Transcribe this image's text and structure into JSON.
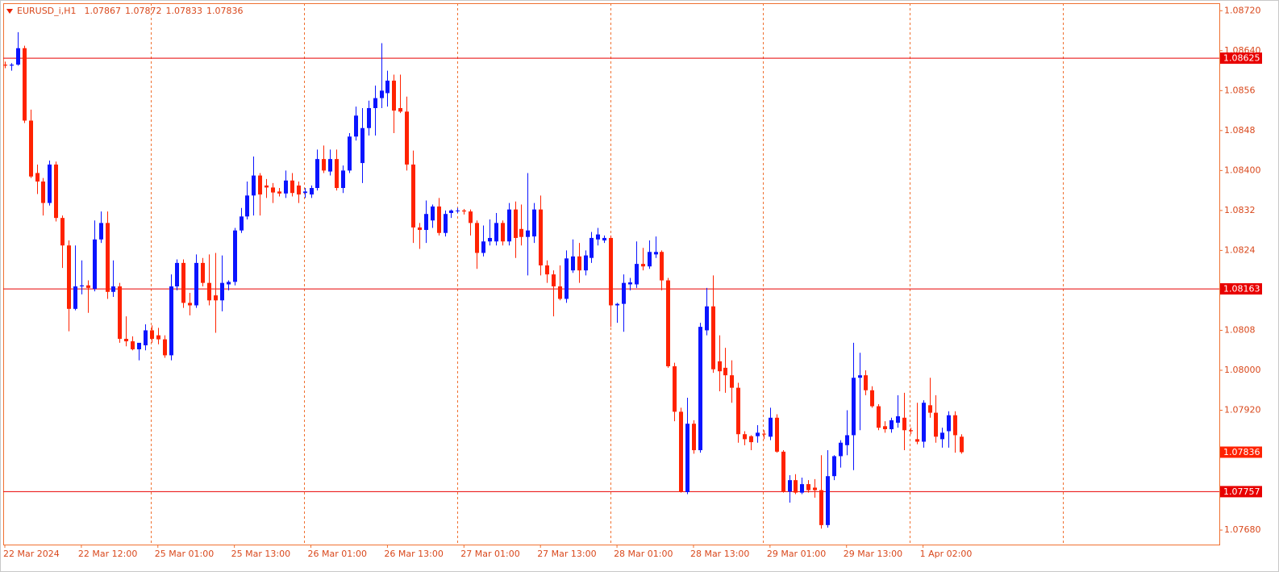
{
  "chart_data": {
    "type": "candlestick",
    "symbol": "EURUSD_i,H1",
    "categories": [
      "22 Mar 2024",
      null,
      null,
      null,
      null,
      null,
      null,
      null,
      null,
      null,
      null,
      null,
      "22 Mar 12:00",
      null,
      null,
      null,
      null,
      null,
      null,
      null,
      null,
      null,
      null,
      null,
      "25 Mar 01:00",
      null,
      null,
      null,
      null,
      null,
      null,
      null,
      null,
      null,
      null,
      null,
      "25 Mar 13:00",
      null,
      null,
      null,
      null,
      null,
      null,
      null,
      null,
      null,
      null,
      null,
      "26 Mar 01:00",
      null,
      null,
      null,
      null,
      null,
      null,
      null,
      null,
      null,
      null,
      null,
      "26 Mar 13:00",
      null,
      null,
      null,
      null,
      null,
      null,
      null,
      null,
      null,
      null,
      null,
      "27 Mar 01:00",
      null,
      null,
      null,
      null,
      null,
      null,
      null,
      null,
      null,
      null,
      null,
      "27 Mar 13:00",
      null,
      null,
      null,
      null,
      null,
      null,
      null,
      null,
      null,
      null,
      null,
      "28 Mar 01:00",
      null,
      null,
      null,
      null,
      null,
      null,
      null,
      null,
      null,
      null,
      null,
      "28 Mar 13:00",
      null,
      null,
      null,
      null,
      null,
      null,
      null,
      null,
      null,
      null,
      null,
      "29 Mar 01:00",
      null,
      null,
      null,
      null,
      null,
      null,
      null,
      null,
      null,
      null,
      null,
      "29 Mar 13:00",
      null,
      null,
      null,
      null,
      null,
      null,
      null,
      null,
      null,
      null,
      null,
      "1 Apr 02:00",
      null,
      null,
      null,
      null,
      null,
      null
    ],
    "open": [
      1.08612,
      1.0861,
      1.08612,
      1.08645,
      1.085,
      1.08395,
      1.08378,
      1.08335,
      1.08412,
      1.08305,
      1.0825,
      1.08123,
      1.08168,
      1.0817,
      1.08163,
      1.08262,
      1.08295,
      1.08157,
      1.08168,
      1.08063,
      1.08058,
      1.08042,
      1.0805,
      1.0808,
      1.0807,
      1.08062,
      1.0803,
      1.08168,
      1.08215,
      1.08135,
      1.0813,
      1.08215,
      1.08175,
      1.0815,
      1.0814,
      1.08172,
      1.08177,
      1.0828,
      1.08308,
      1.0835,
      1.0839,
      1.0837,
      1.08366,
      1.08358,
      1.08354,
      1.0838,
      1.0837,
      1.08355,
      1.08352,
      1.08365,
      1.08423,
      1.08398,
      1.08423,
      1.08365,
      1.084,
      1.08468,
      1.08415,
      1.08485,
      1.08525,
      1.08545,
      1.08555,
      1.0858,
      1.08525,
      1.08518,
      1.08412,
      1.08286,
      1.08281,
      1.083,
      1.08328,
      1.08275,
      1.08315,
      1.0832,
      1.0832,
      1.08318,
      1.08295,
      1.08235,
      1.08258,
      1.08258,
      1.08295,
      1.08258,
      1.08322,
      1.08283,
      1.08267,
      1.08268,
      1.08322,
      1.0821,
      1.08192,
      1.08168,
      1.08143,
      1.082,
      1.08228,
      1.082,
      1.08225,
      1.08262,
      1.0826,
      1.08265,
      1.0813,
      1.08133,
      1.08172,
      1.08172,
      1.08213,
      1.08208,
      1.08232,
      1.08237,
      1.0818,
      1.08008,
      1.07917,
      1.07756,
      1.07893,
      1.0784,
      1.0808,
      1.08128,
      1.08018,
      1.08005,
      1.0799,
      1.07965,
      1.07872,
      1.07868,
      1.07868,
      1.07873,
      1.07867,
      1.07905,
      1.07837,
      1.07757,
      1.0778,
      1.07755,
      1.07772,
      1.07765,
      1.0776,
      1.0769,
      1.07788,
      1.07828,
      1.0785,
      1.0787,
      1.07985,
      1.0799,
      1.0796,
      1.07928,
      1.07888,
      1.07882,
      1.07895,
      1.07905,
      1.0788,
      1.07862,
      1.07857,
      1.0793,
      1.07915,
      1.07862,
      1.07878,
      1.0791,
      1.07867
    ],
    "high": [
      1.08618,
      1.08615,
      1.08677,
      1.0865,
      1.08522,
      1.08412,
      1.08385,
      1.0842,
      1.08418,
      1.0831,
      1.0826,
      1.0825,
      1.0822,
      1.0818,
      1.083,
      1.08318,
      1.08318,
      1.0822,
      1.08175,
      1.08108,
      1.08068,
      1.0805,
      1.08092,
      1.0809,
      1.08085,
      1.0807,
      1.08192,
      1.08222,
      1.08222,
      1.08155,
      1.08232,
      1.08225,
      1.08232,
      1.08235,
      1.0823,
      1.0818,
      1.08285,
      1.08325,
      1.08378,
      1.08428,
      1.08395,
      1.08383,
      1.08375,
      1.08365,
      1.084,
      1.08395,
      1.08378,
      1.08365,
      1.0837,
      1.08442,
      1.0845,
      1.08442,
      1.08442,
      1.0841,
      1.08475,
      1.08528,
      1.08525,
      1.0854,
      1.0857,
      1.08655,
      1.086,
      1.08592,
      1.08592,
      1.08548,
      1.0844,
      1.08295,
      1.0834,
      1.08332,
      1.08345,
      1.0832,
      1.08322,
      1.08325,
      1.08323,
      1.08322,
      1.083,
      1.0829,
      1.08302,
      1.08315,
      1.083,
      1.08335,
      1.08338,
      1.08332,
      1.08395,
      1.08335,
      1.0835,
      1.0822,
      1.082,
      1.0821,
      1.0824,
      1.08262,
      1.08255,
      1.0824,
      1.08277,
      1.08285,
      1.0827,
      1.0827,
      1.08135,
      1.08192,
      1.08185,
      1.08258,
      1.08245,
      1.0826,
      1.08268,
      1.0824,
      1.08185,
      1.08015,
      1.07925,
      1.07945,
      1.079,
      1.08095,
      1.08165,
      1.0819,
      1.0807,
      1.08045,
      1.0802,
      1.07975,
      1.07878,
      1.0787,
      1.0789,
      1.0788,
      1.07925,
      1.07912,
      1.0784,
      1.0779,
      1.07792,
      1.07785,
      1.0778,
      1.07782,
      1.0783,
      1.0784,
      1.0783,
      1.0786,
      1.0792,
      1.08055,
      1.08035,
      1.08,
      1.07968,
      1.07932,
      1.07898,
      1.07905,
      1.0795,
      1.07955,
      1.07885,
      1.07935,
      1.0794,
      1.07985,
      1.0795,
      1.07885,
      1.07918,
      1.07918,
      1.07872
    ],
    "low": [
      1.08605,
      1.086,
      1.0861,
      1.08495,
      1.08385,
      1.08353,
      1.0831,
      1.0833,
      1.08298,
      1.08205,
      1.08078,
      1.0812,
      1.08152,
      1.08115,
      1.08158,
      1.08255,
      1.08143,
      1.08147,
      1.08055,
      1.08048,
      1.0804,
      1.0802,
      1.0804,
      1.08055,
      1.08052,
      1.08025,
      1.0802,
      1.0816,
      1.08125,
      1.0811,
      1.08125,
      1.08168,
      1.0813,
      1.08075,
      1.08118,
      1.0816,
      1.0817,
      1.08275,
      1.08302,
      1.0831,
      1.0831,
      1.08345,
      1.08335,
      1.08348,
      1.08345,
      1.08348,
      1.08335,
      1.08345,
      1.08345,
      1.0836,
      1.08395,
      1.0839,
      1.0836,
      1.08355,
      1.08395,
      1.0846,
      1.08375,
      1.0847,
      1.0847,
      1.08525,
      1.08528,
      1.08475,
      1.08515,
      1.084,
      1.08255,
      1.08243,
      1.08255,
      1.08285,
      1.0827,
      1.08268,
      1.08305,
      1.08315,
      1.08312,
      1.0827,
      1.08203,
      1.08228,
      1.0825,
      1.0825,
      1.0825,
      1.0825,
      1.08225,
      1.0825,
      1.0819,
      1.08255,
      1.0819,
      1.08175,
      1.08108,
      1.0814,
      1.08135,
      1.08195,
      1.08175,
      1.0819,
      1.08215,
      1.0825,
      1.08255,
      1.08087,
      1.08095,
      1.08077,
      1.0816,
      1.08165,
      1.082,
      1.08203,
      1.08225,
      1.0816,
      1.08005,
      1.07898,
      1.07755,
      1.07752,
      1.07833,
      1.07835,
      1.0807,
      1.07995,
      1.07958,
      1.07955,
      1.07935,
      1.07855,
      1.0785,
      1.0784,
      1.07855,
      1.07862,
      1.0786,
      1.07835,
      1.07755,
      1.07735,
      1.07752,
      1.07752,
      1.07755,
      1.07745,
      1.07683,
      1.07685,
      1.0778,
      1.07805,
      1.0783,
      1.078,
      1.0788,
      1.0795,
      1.07925,
      1.0788,
      1.07875,
      1.07875,
      1.07885,
      1.0784,
      1.07872,
      1.07852,
      1.07845,
      1.07905,
      1.07855,
      1.07845,
      1.07845,
      1.07835,
      1.07833
    ],
    "close": [
      1.0861,
      1.08612,
      1.08645,
      1.085,
      1.08388,
      1.08378,
      1.08335,
      1.08412,
      1.08305,
      1.0825,
      1.08123,
      1.08168,
      1.0817,
      1.08165,
      1.08262,
      1.08295,
      1.08157,
      1.08168,
      1.08063,
      1.08058,
      1.08042,
      1.08055,
      1.0808,
      1.08063,
      1.08062,
      1.0803,
      1.08168,
      1.08215,
      1.08135,
      1.0813,
      1.08215,
      1.08175,
      1.0814,
      1.0814,
      1.08175,
      1.08177,
      1.0828,
      1.08308,
      1.0835,
      1.0839,
      1.08352,
      1.08366,
      1.08356,
      1.08354,
      1.0838,
      1.08355,
      1.08352,
      1.08358,
      1.08365,
      1.08423,
      1.084,
      1.08423,
      1.08365,
      1.084,
      1.08468,
      1.0851,
      1.08485,
      1.08525,
      1.08545,
      1.0856,
      1.0858,
      1.0852,
      1.08518,
      1.08412,
      1.08286,
      1.08281,
      1.08313,
      1.08328,
      1.08275,
      1.08313,
      1.0832,
      1.0832,
      1.08318,
      1.08295,
      1.08235,
      1.08258,
      1.08265,
      1.08295,
      1.08258,
      1.08322,
      1.08265,
      1.08267,
      1.0828,
      1.08322,
      1.0821,
      1.08192,
      1.08168,
      1.08143,
      1.08224,
      1.08228,
      1.082,
      1.0823,
      1.08265,
      1.08272,
      1.08265,
      1.0813,
      1.08133,
      1.08175,
      1.08176,
      1.08213,
      1.08208,
      1.08237,
      1.08237,
      1.0818,
      1.08008,
      1.07917,
      1.07756,
      1.07893,
      1.0784,
      1.08087,
      1.08128,
      1.08002,
      1.07998,
      1.0799,
      1.07965,
      1.07872,
      1.07862,
      1.07856,
      1.07875,
      1.07872,
      1.07905,
      1.07837,
      1.07757,
      1.0778,
      1.07755,
      1.07772,
      1.0776,
      1.0776,
      1.0769,
      1.07788,
      1.07828,
      1.07855,
      1.0787,
      1.07985,
      1.0799,
      1.0796,
      1.07928,
      1.07885,
      1.07882,
      1.079,
      1.07908,
      1.0788,
      1.07878,
      1.07857,
      1.07935,
      1.07915,
      1.07867,
      1.07875,
      1.0791,
      1.0787,
      1.07836
    ],
    "up_color": "#0a14ff",
    "down_color": "#ff2200",
    "hlines": [
      1.08625,
      1.08163,
      1.07757
    ],
    "hline_color": "#e80000",
    "ylim": [
      1.07651,
      1.08735
    ],
    "yticks": [
      {
        "value": 1.0872,
        "label": "1.08720"
      },
      {
        "value": 1.0864,
        "label": "1.08640"
      },
      1.0856,
      1.0848,
      {
        "value": 1.084,
        "label": "1.08400"
      },
      1.0832,
      1.0824,
      1.0808,
      {
        "value": 1.08,
        "label": "1.08000"
      },
      {
        "value": 1.0792,
        "label": "1.07920"
      },
      {
        "value": 1.0768,
        "label": "1.07680"
      }
    ]
  }
}
